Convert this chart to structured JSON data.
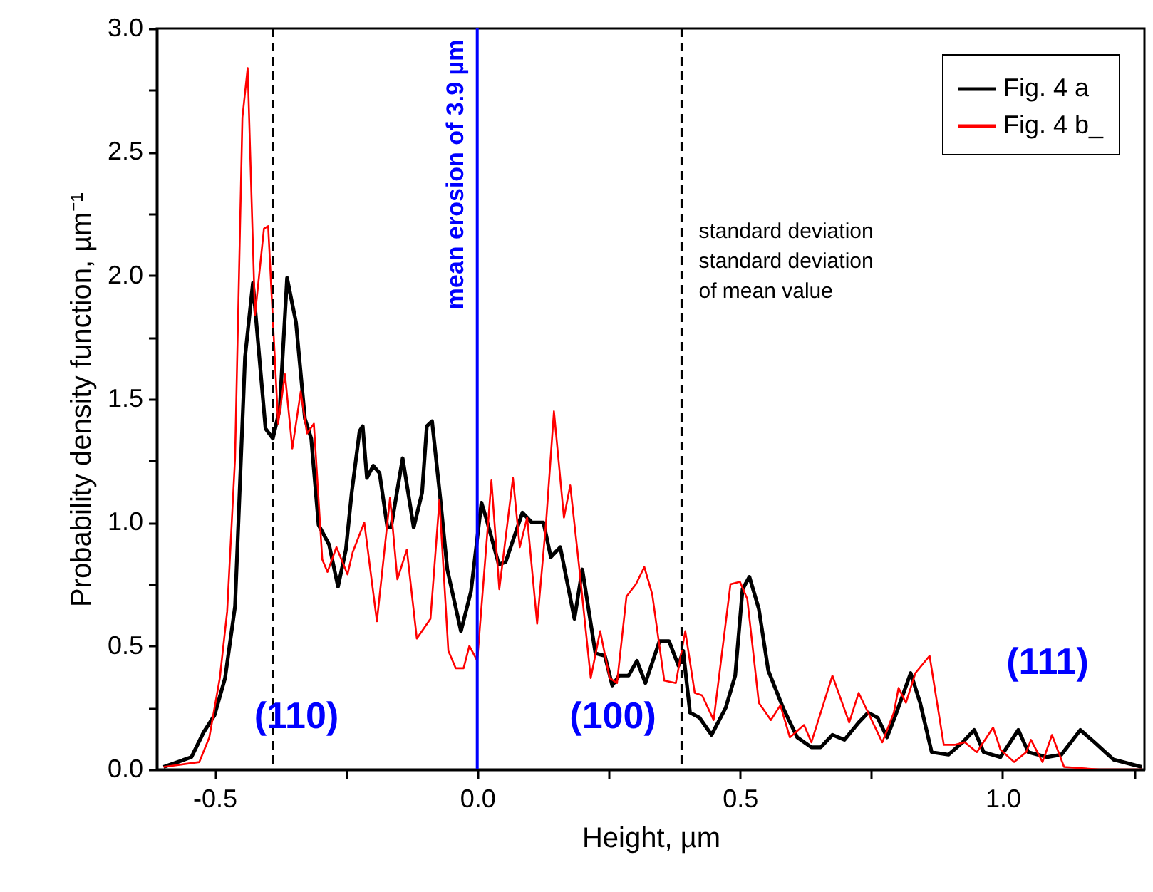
{
  "chart_data": {
    "type": "line",
    "xlabel": "Height, µm",
    "ylabel": "Probability density function, µm⁻¹",
    "xlim": [
      -0.61,
      1.27
    ],
    "ylim": [
      0,
      3.0
    ],
    "xticks": [
      {
        "value": -0.5,
        "label": "-0.5"
      },
      {
        "value": -0.25,
        "label": null
      },
      {
        "value": 0,
        "label": "0.0"
      },
      {
        "value": 0.25,
        "label": null
      },
      {
        "value": 0.5,
        "label": "0.5"
      },
      {
        "value": 0.75,
        "label": null
      },
      {
        "value": 1,
        "label": "1.0"
      },
      {
        "value": 1.25,
        "label": null
      }
    ],
    "yticks": [
      {
        "value": 0,
        "label": "0.0"
      },
      {
        "value": 0.25,
        "label": null
      },
      {
        "value": 0.5,
        "label": "0.5"
      },
      {
        "value": 0.75,
        "label": null
      },
      {
        "value": 1,
        "label": "1.0"
      },
      {
        "value": 1.25,
        "label": null
      },
      {
        "value": 1.5,
        "label": "1.5"
      },
      {
        "value": 1.75,
        "label": null
      },
      {
        "value": 2,
        "label": "2.0"
      },
      {
        "value": 2.25,
        "label": null
      },
      {
        "value": 2.5,
        "label": "2.5"
      },
      {
        "value": 2.75,
        "label": null
      },
      {
        "value": 3,
        "label": "3.0"
      }
    ],
    "grid": false,
    "legend": "top right",
    "series": [
      {
        "name": "Fig. 4 a",
        "color": "#000000",
        "x": [
          -0.597,
          -0.544,
          -0.521,
          -0.5,
          -0.48,
          -0.461,
          -0.442,
          -0.427,
          -0.403,
          -0.389,
          -0.376,
          -0.362,
          -0.345,
          -0.328,
          -0.316,
          -0.302,
          -0.282,
          -0.265,
          -0.25,
          -0.239,
          -0.224,
          -0.218,
          -0.21,
          -0.198,
          -0.186,
          -0.171,
          -0.164,
          -0.142,
          -0.121,
          -0.105,
          -0.096,
          -0.086,
          -0.07,
          -0.057,
          -0.031,
          -0.012,
          0.008,
          0.018,
          0.041,
          0.054,
          0.086,
          0.104,
          0.126,
          0.14,
          0.158,
          0.185,
          0.2,
          0.225,
          0.243,
          0.257,
          0.27,
          0.288,
          0.304,
          0.32,
          0.347,
          0.365,
          0.383,
          0.392,
          0.405,
          0.423,
          0.446,
          0.473,
          0.491,
          0.505,
          0.518,
          0.536,
          0.554,
          0.582,
          0.609,
          0.636,
          0.654,
          0.676,
          0.699,
          0.726,
          0.744,
          0.762,
          0.78,
          0.798,
          0.825,
          0.843,
          0.865,
          0.897,
          0.924,
          0.946,
          0.964,
          0.996,
          1.03,
          1.049,
          1.085,
          1.112,
          1.148,
          1.175,
          1.211,
          1.265
        ],
        "values": [
          0.01,
          0.05,
          0.15,
          0.22,
          0.37,
          0.66,
          1.67,
          1.97,
          1.38,
          1.34,
          1.46,
          1.99,
          1.81,
          1.42,
          1.34,
          0.99,
          0.91,
          0.74,
          0.89,
          1.12,
          1.37,
          1.39,
          1.18,
          1.23,
          1.2,
          0.98,
          0.98,
          1.26,
          0.98,
          1.12,
          1.39,
          1.41,
          1.09,
          0.81,
          0.56,
          0.72,
          1.08,
          1.01,
          0.83,
          0.84,
          1.04,
          1.0,
          1.0,
          0.86,
          0.9,
          0.61,
          0.81,
          0.47,
          0.46,
          0.34,
          0.38,
          0.38,
          0.44,
          0.35,
          0.52,
          0.52,
          0.42,
          0.48,
          0.23,
          0.21,
          0.14,
          0.25,
          0.38,
          0.73,
          0.78,
          0.65,
          0.4,
          0.25,
          0.13,
          0.09,
          0.09,
          0.14,
          0.12,
          0.19,
          0.23,
          0.21,
          0.13,
          0.23,
          0.39,
          0.27,
          0.07,
          0.06,
          0.11,
          0.16,
          0.07,
          0.05,
          0.16,
          0.07,
          0.05,
          0.06,
          0.16,
          0.11,
          0.04,
          0.01
        ]
      },
      {
        "name": "Fig. 4 b_",
        "color": "#ff0000",
        "x": [
          -0.597,
          -0.529,
          -0.51,
          -0.49,
          -0.476,
          -0.461,
          -0.447,
          -0.437,
          -0.423,
          -0.406,
          -0.398,
          -0.379,
          -0.366,
          -0.352,
          -0.336,
          -0.324,
          -0.311,
          -0.295,
          -0.285,
          -0.268,
          -0.247,
          -0.237,
          -0.215,
          -0.191,
          -0.166,
          -0.152,
          -0.134,
          -0.115,
          -0.089,
          -0.072,
          -0.055,
          -0.041,
          -0.026,
          -0.015,
          0.0,
          0.027,
          0.042,
          0.068,
          0.081,
          0.095,
          0.114,
          0.131,
          0.146,
          0.165,
          0.177,
          0.194,
          0.216,
          0.234,
          0.252,
          0.266,
          0.284,
          0.302,
          0.318,
          0.333,
          0.356,
          0.378,
          0.396,
          0.414,
          0.428,
          0.45,
          0.482,
          0.5,
          0.514,
          0.536,
          0.559,
          0.577,
          0.595,
          0.622,
          0.636,
          0.676,
          0.708,
          0.726,
          0.771,
          0.793,
          0.802,
          0.816,
          0.834,
          0.861,
          0.888,
          0.91,
          0.928,
          0.951,
          0.982,
          0.996,
          1.022,
          1.045,
          1.054,
          1.076,
          1.094,
          1.117,
          1.184,
          1.265
        ],
        "values": [
          0.01,
          0.03,
          0.13,
          0.37,
          0.64,
          1.26,
          2.64,
          2.84,
          1.84,
          2.19,
          2.2,
          1.4,
          1.6,
          1.3,
          1.53,
          1.36,
          1.4,
          0.85,
          0.8,
          0.9,
          0.79,
          0.88,
          1.0,
          0.6,
          1.1,
          0.77,
          0.89,
          0.53,
          0.61,
          1.09,
          0.48,
          0.41,
          0.41,
          0.5,
          0.44,
          1.17,
          0.73,
          1.18,
          0.9,
          1.02,
          0.59,
          1.0,
          1.45,
          1.02,
          1.15,
          0.82,
          0.37,
          0.56,
          0.37,
          0.35,
          0.7,
          0.75,
          0.82,
          0.71,
          0.36,
          0.35,
          0.56,
          0.31,
          0.3,
          0.2,
          0.75,
          0.76,
          0.69,
          0.27,
          0.2,
          0.26,
          0.13,
          0.18,
          0.11,
          0.38,
          0.19,
          0.31,
          0.11,
          0.23,
          0.33,
          0.27,
          0.39,
          0.46,
          0.1,
          0.1,
          0.11,
          0.07,
          0.17,
          0.08,
          0.03,
          0.07,
          0.12,
          0.03,
          0.14,
          0.01,
          0.0,
          0.0
        ]
      }
    ],
    "ref_lines": [
      {
        "axis": "x",
        "value": -0.389,
        "color": "#000000",
        "line_style": "dashed"
      },
      {
        "axis": "x",
        "value": 0,
        "label": "mean erosion of  3.9 µm",
        "color": "#0000ff",
        "line_style": "solid"
      },
      {
        "axis": "x",
        "value": 0.389,
        "label": "standard deviation\nstandard deviation\nof mean value",
        "color": "#000000",
        "line_style": "dashed"
      }
    ],
    "annotations": [
      "(110)",
      "(100)",
      "(111)"
    ]
  }
}
